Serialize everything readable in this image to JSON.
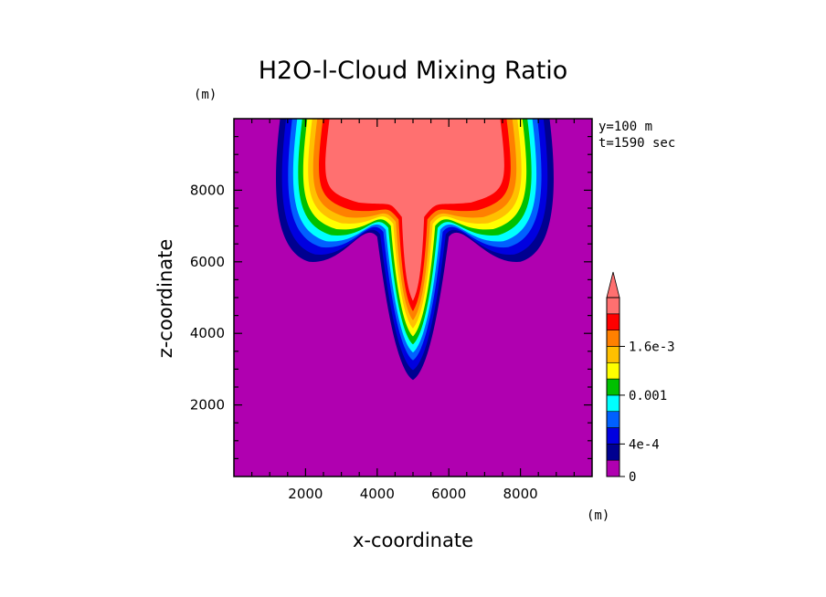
{
  "chart_data": {
    "type": "heatmap",
    "title": "H2O-l-Cloud Mixing Ratio",
    "xlabel": "x-coordinate",
    "ylabel": "z-coordinate",
    "x_unit": "(m)",
    "y_unit": "(m)",
    "xlim": [
      0,
      10000
    ],
    "ylim": [
      0,
      10000
    ],
    "xticks": [
      "2000",
      "4000",
      "6000",
      "8000"
    ],
    "yticks": [
      "2000",
      "4000",
      "6000",
      "8000"
    ],
    "annotations": [
      "y=100 m",
      "t=1590 sec"
    ],
    "colorbar": {
      "labels": [
        "0",
        "4e-4",
        "0.001",
        "1.6e-3"
      ],
      "levels": [
        0,
        0.0002,
        0.0004,
        0.0006,
        0.0008,
        0.001,
        0.0012,
        0.0014,
        0.0016,
        0.0018,
        0.002
      ],
      "colors": [
        "#b000b0",
        "#000090",
        "#0000e0",
        "#0060ff",
        "#00ffff",
        "#00c000",
        "#ffff00",
        "#ffc000",
        "#ff8000",
        "#ff0000",
        "#ff7070"
      ],
      "overflow_arrow": "top"
    },
    "field": {
      "description_free": true,
      "max_level_index": 10,
      "anvil": {
        "x_range": [
          1300,
          8800
        ],
        "top": 9800,
        "base_edges": 6000,
        "base_center": 7000
      },
      "stem": {
        "x_center": 5000,
        "half_width_top": 1000,
        "bottom": 2700
      }
    }
  }
}
